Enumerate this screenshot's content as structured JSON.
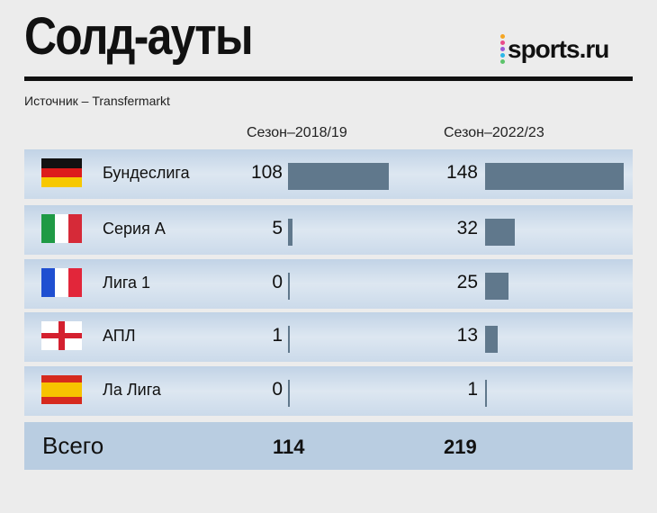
{
  "header": {
    "title": "Солд-ауты",
    "logo_text": "sports.ru",
    "logo_dot_colors": [
      "#f5a623",
      "#e94b8a",
      "#9b59d6",
      "#2bb7e8",
      "#5cc36a"
    ],
    "source": "Источник – Transfermarkt"
  },
  "colors": {
    "bar": "#60788c",
    "row_bg": "#cbdaea",
    "total_bg": "#b9cde1"
  },
  "chart_data": {
    "type": "bar",
    "categories": [
      "Бундеслига",
      "Серия А",
      "Лига 1",
      "АПЛ",
      "Ла Лига"
    ],
    "flags": [
      "germany-flag-icon",
      "italy-flag-icon",
      "france-flag-icon",
      "england-flag-icon",
      "spain-flag-icon"
    ],
    "series": [
      {
        "name": "Сезон–2018/19",
        "values": [
          108,
          5,
          0,
          1,
          0
        ]
      },
      {
        "name": "Сезон–2022/23",
        "values": [
          148,
          32,
          25,
          13,
          1
        ]
      }
    ],
    "totals": {
      "label": "Всего",
      "values": [
        "114",
        "219"
      ]
    }
  }
}
